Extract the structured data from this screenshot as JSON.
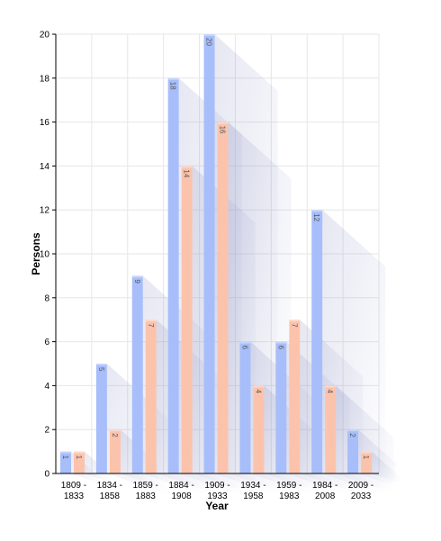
{
  "chart_data": {
    "type": "bar",
    "xlabel": "Year",
    "ylabel": "Persons",
    "ylim": [
      0,
      20
    ],
    "yticks": [
      0,
      2,
      4,
      6,
      8,
      10,
      12,
      14,
      16,
      18,
      20
    ],
    "grid": true,
    "categories": [
      [
        "1809 -",
        "1833"
      ],
      [
        "1834 -",
        "1858"
      ],
      [
        "1859 -",
        "1883"
      ],
      [
        "1884 -",
        "1908"
      ],
      [
        "1909 -",
        "1933"
      ],
      [
        "1934 -",
        "1958"
      ],
      [
        "1959 -",
        "1983"
      ],
      [
        "1984 -",
        "2008"
      ],
      [
        "2009 -",
        "2033"
      ]
    ],
    "series": [
      {
        "values": [
          1,
          5,
          9,
          18,
          20,
          6,
          6,
          12,
          2
        ],
        "color": "#a7befa"
      },
      {
        "values": [
          1,
          2,
          7,
          14,
          16,
          4,
          7,
          4,
          1
        ],
        "color": "#fcc3ac"
      }
    ]
  }
}
